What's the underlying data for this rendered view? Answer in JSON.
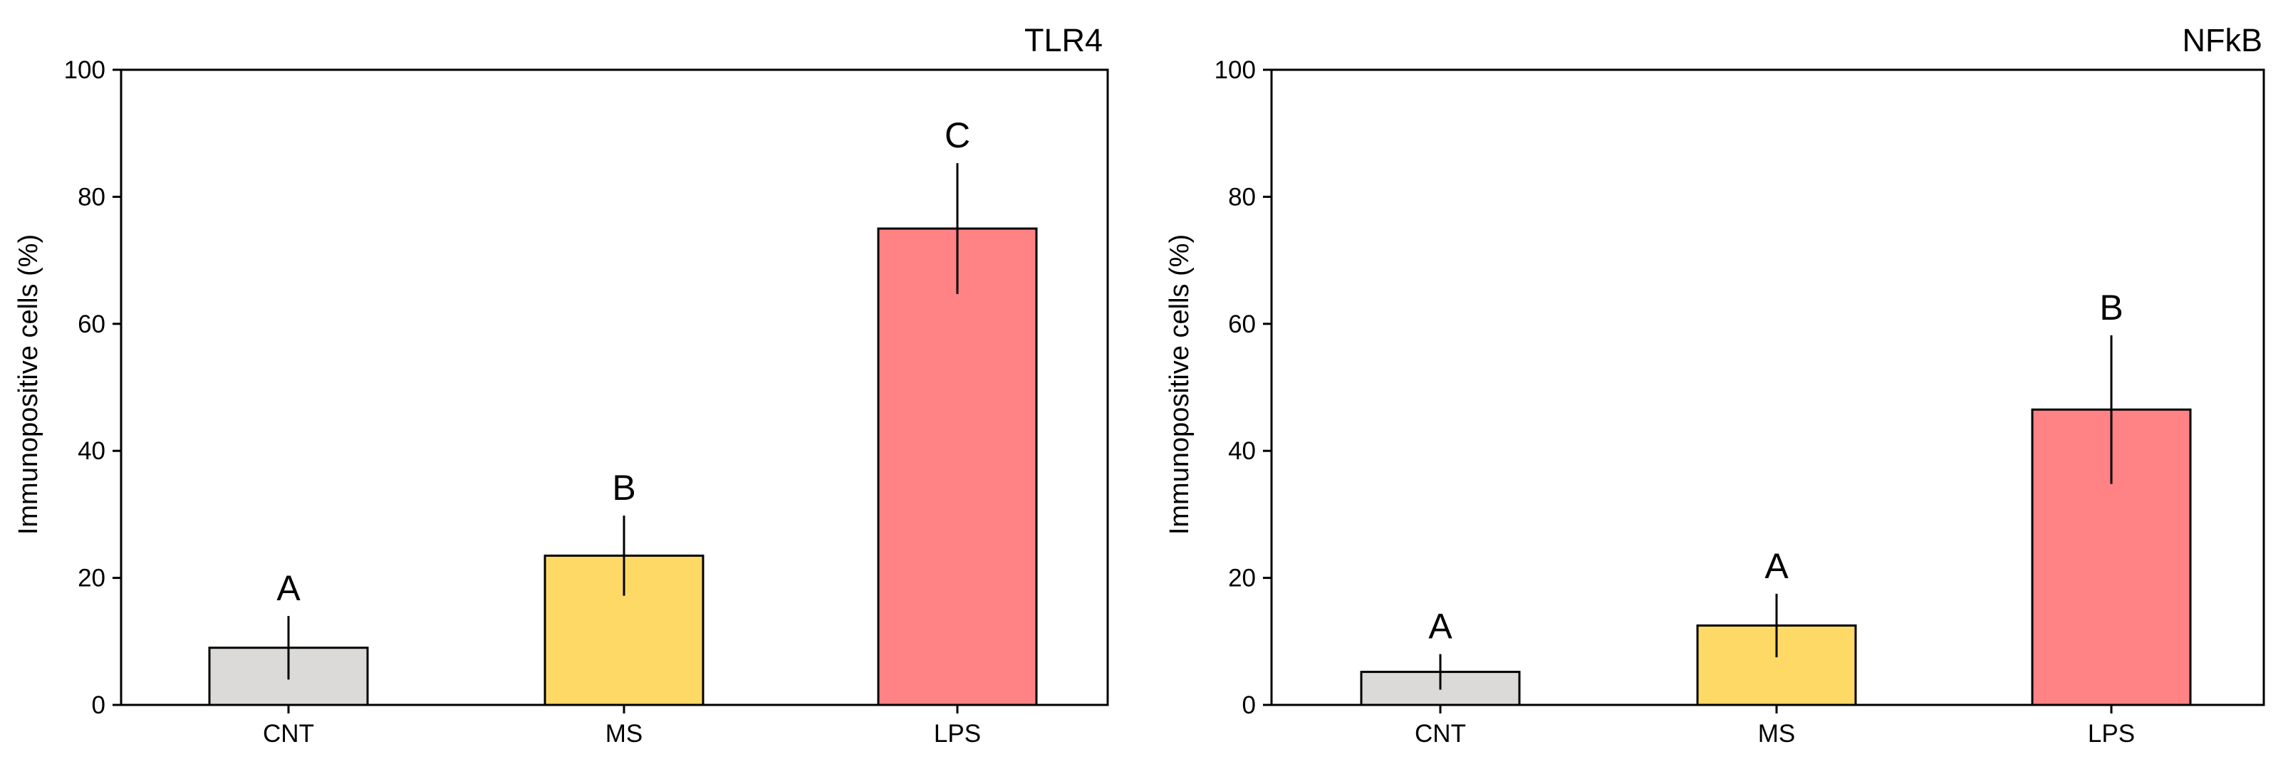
{
  "chart_data": [
    {
      "type": "bar",
      "title": "TLR4",
      "xlabel": "",
      "ylabel": "Immunopositive cells (%)",
      "ylim": [
        0,
        100
      ],
      "yticks": [
        0,
        20,
        40,
        60,
        80,
        100
      ],
      "categories": [
        "CNT",
        "MS",
        "LPS"
      ],
      "values": [
        9,
        23.5,
        75
      ],
      "errors": [
        5,
        6.3,
        10.3
      ],
      "significance": [
        "A",
        "B",
        "C"
      ],
      "colors": [
        "#DCDAD8",
        "#FFD966",
        "#FF8285"
      ],
      "grid": false
    },
    {
      "type": "bar",
      "title": "NFkB",
      "xlabel": "",
      "ylabel": "Immunopositive cells (%)",
      "ylim": [
        0,
        100
      ],
      "yticks": [
        0,
        20,
        40,
        60,
        80,
        100
      ],
      "categories": [
        "CNT",
        "MS",
        "LPS"
      ],
      "values": [
        5.2,
        12.5,
        46.5
      ],
      "errors": [
        2.8,
        5,
        11.7
      ],
      "significance": [
        "A",
        "A",
        "B"
      ],
      "colors": [
        "#DCDAD8",
        "#FFD966",
        "#FF8285"
      ],
      "grid": false
    }
  ]
}
